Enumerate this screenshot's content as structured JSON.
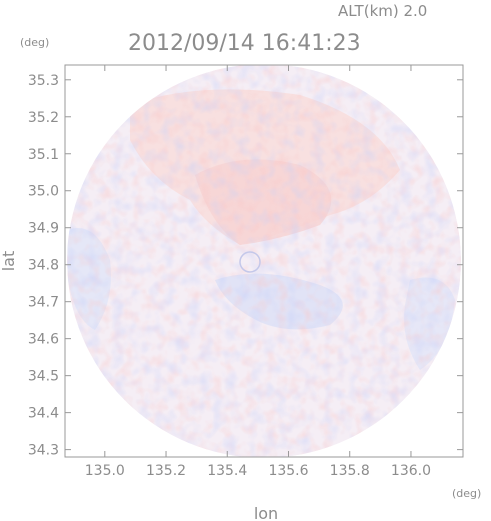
{
  "header": {
    "altitude_text": "ALT(km) 2.0",
    "timestamp": "2012/09/14 16:41:23",
    "y_unit": "(deg)",
    "x_unit": "(deg)"
  },
  "chart_data": {
    "type": "heatmap",
    "title": "2012/09/14 16:41:23",
    "xlabel": "lon",
    "ylabel": "lat",
    "x_unit": "(deg)",
    "y_unit": "(deg)",
    "xlim": [
      134.87,
      136.17
    ],
    "ylim": [
      34.28,
      35.34
    ],
    "x_ticks": [
      "135.0",
      "135.2",
      "135.4",
      "135.6",
      "135.8",
      "136.0"
    ],
    "x_tick_values": [
      135.0,
      135.2,
      135.4,
      135.6,
      135.8,
      136.0
    ],
    "y_ticks": [
      "34.3",
      "34.4",
      "34.5",
      "34.6",
      "34.7",
      "34.8",
      "34.9",
      "35.0",
      "35.1",
      "35.2",
      "35.3"
    ],
    "y_tick_values": [
      34.3,
      34.4,
      34.5,
      34.6,
      34.7,
      34.8,
      34.9,
      35.0,
      35.1,
      35.2,
      35.3
    ],
    "coverage": "circular radar scan",
    "center": {
      "lon": 135.52,
      "lat": 34.81
    },
    "colors": {
      "positive": "#f6c9c9",
      "negative": "#cdd3f3",
      "neutral": "#f7eef4"
    }
  }
}
